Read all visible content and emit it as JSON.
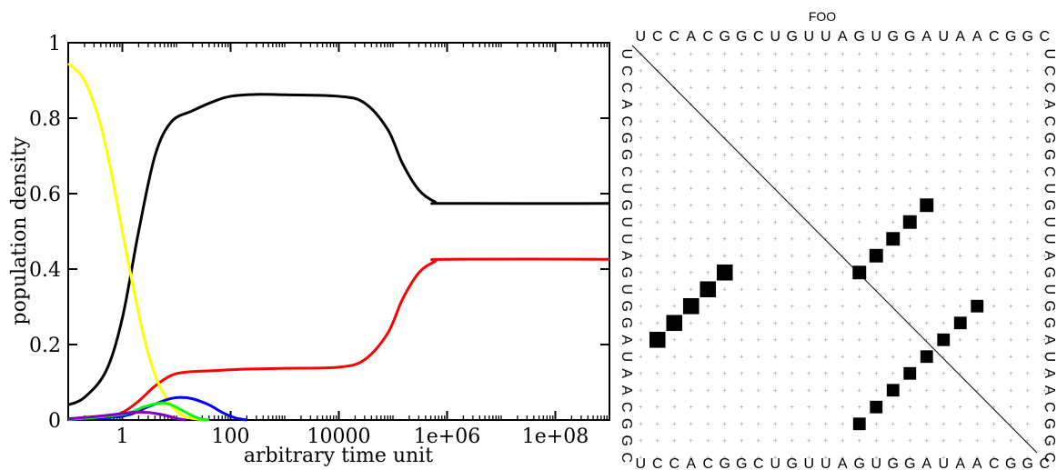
{
  "chart_data": [
    {
      "type": "line",
      "xscale": "log",
      "x_tick_labels": [
        "1",
        "100",
        "10000",
        "1e+06",
        "1e+08"
      ],
      "x_tick_values": [
        1,
        100,
        10000,
        1000000,
        100000000
      ],
      "xlim": [
        0.1,
        1000000000
      ],
      "y_tick_labels": [
        "0",
        "0.2",
        "0.4",
        "0.6",
        "0.8",
        "1"
      ],
      "y_tick_values": [
        0,
        0.2,
        0.4,
        0.6,
        0.8,
        1
      ],
      "ylim": [
        0,
        1
      ],
      "xlabel": "arbitrary time unit",
      "ylabel": "population density",
      "grid": false,
      "series": [
        {
          "color": "#000000",
          "points": [
            [
              0.1,
              0.04
            ],
            [
              0.2,
              0.06
            ],
            [
              0.5,
              0.13
            ],
            [
              1,
              0.27
            ],
            [
              2,
              0.5
            ],
            [
              4,
              0.7
            ],
            [
              8,
              0.79
            ],
            [
              20,
              0.82
            ],
            [
              50,
              0.845
            ],
            [
              100,
              0.858
            ],
            [
              300,
              0.863
            ],
            [
              1000,
              0.862
            ],
            [
              10000,
              0.858
            ],
            [
              30000,
              0.84
            ],
            [
              80000,
              0.77
            ],
            [
              150000,
              0.68
            ],
            [
              300000,
              0.61
            ],
            [
              600000,
              0.578
            ],
            [
              1000000,
              0.574
            ],
            [
              1000000000,
              0.574
            ]
          ]
        },
        {
          "color": "#ff0000",
          "points": [
            [
              0.1,
              0.003
            ],
            [
              0.5,
              0.008
            ],
            [
              1,
              0.02
            ],
            [
              2,
              0.05
            ],
            [
              4,
              0.09
            ],
            [
              8,
              0.118
            ],
            [
              15,
              0.127
            ],
            [
              50,
              0.131
            ],
            [
              200,
              0.135
            ],
            [
              1000,
              0.137
            ],
            [
              10000,
              0.14
            ],
            [
              30000,
              0.16
            ],
            [
              80000,
              0.23
            ],
            [
              150000,
              0.32
            ],
            [
              300000,
              0.39
            ],
            [
              600000,
              0.42
            ],
            [
              1000000,
              0.426
            ],
            [
              1000000000,
              0.426
            ]
          ]
        },
        {
          "color": "#ffff00",
          "points": [
            [
              0.1,
              0.945
            ],
            [
              0.2,
              0.9
            ],
            [
              0.4,
              0.78
            ],
            [
              0.7,
              0.62
            ],
            [
              1,
              0.5
            ],
            [
              1.5,
              0.37
            ],
            [
              2.5,
              0.22
            ],
            [
              4,
              0.12
            ],
            [
              7,
              0.05
            ],
            [
              12,
              0.015
            ],
            [
              20,
              0.004
            ],
            [
              40,
              0.0
            ]
          ]
        },
        {
          "color": "#0000ff",
          "points": [
            [
              0.1,
              0.001
            ],
            [
              1,
              0.01
            ],
            [
              3,
              0.035
            ],
            [
              7,
              0.055
            ],
            [
              12,
              0.06
            ],
            [
              20,
              0.056
            ],
            [
              40,
              0.04
            ],
            [
              70,
              0.02
            ],
            [
              120,
              0.006
            ],
            [
              200,
              0.0
            ]
          ]
        },
        {
          "color": "#00ff00",
          "points": [
            [
              0.1,
              0.001
            ],
            [
              1,
              0.015
            ],
            [
              2.5,
              0.035
            ],
            [
              5,
              0.045
            ],
            [
              8,
              0.04
            ],
            [
              15,
              0.02
            ],
            [
              25,
              0.005
            ],
            [
              40,
              0.0
            ]
          ]
        },
        {
          "color": "#8000c0",
          "points": [
            [
              0.1,
              0.003
            ],
            [
              0.5,
              0.012
            ],
            [
              1.5,
              0.02
            ],
            [
              3,
              0.02
            ],
            [
              6,
              0.013
            ],
            [
              10,
              0.004
            ],
            [
              15,
              0.0
            ]
          ]
        }
      ]
    },
    {
      "type": "heatmap",
      "title": "FOO",
      "sequence": [
        "U",
        "C",
        "C",
        "A",
        "C",
        "G",
        "G",
        "C",
        "U",
        "G",
        "U",
        "U",
        "A",
        "G",
        "U",
        "G",
        "G",
        "A",
        "U",
        "A",
        "A",
        "C",
        "G",
        "G",
        "C"
      ],
      "upper_pairs": [
        {
          "i": 9,
          "j": 17,
          "prob": 0.72
        },
        {
          "i": 10,
          "j": 16,
          "prob": 0.72
        },
        {
          "i": 11,
          "j": 15,
          "prob": 0.72
        },
        {
          "i": 12,
          "j": 14,
          "prob": 0.72
        },
        {
          "i": 13,
          "j": 13,
          "prob": 0.72
        },
        {
          "i": 15,
          "j": 20,
          "prob": 0.62
        },
        {
          "i": 16,
          "j": 19,
          "prob": 0.62
        },
        {
          "i": 17,
          "j": 18,
          "prob": 0.62
        },
        {
          "i": 18,
          "j": 17,
          "prob": 0.62
        },
        {
          "i": 19,
          "j": 16,
          "prob": 0.62
        },
        {
          "i": 20,
          "j": 15,
          "prob": 0.62
        },
        {
          "i": 21,
          "j": 14,
          "prob": 0.62
        },
        {
          "i": 22,
          "j": 13,
          "prob": 0.62
        }
      ],
      "lower_pairs": [
        {
          "i": 17,
          "j": 1,
          "prob": 1.0
        },
        {
          "i": 16,
          "j": 2,
          "prob": 1.0
        },
        {
          "i": 15,
          "j": 3,
          "prob": 1.0
        },
        {
          "i": 14,
          "j": 4,
          "prob": 1.0
        },
        {
          "i": 13,
          "j": 5,
          "prob": 1.0
        }
      ]
    }
  ]
}
